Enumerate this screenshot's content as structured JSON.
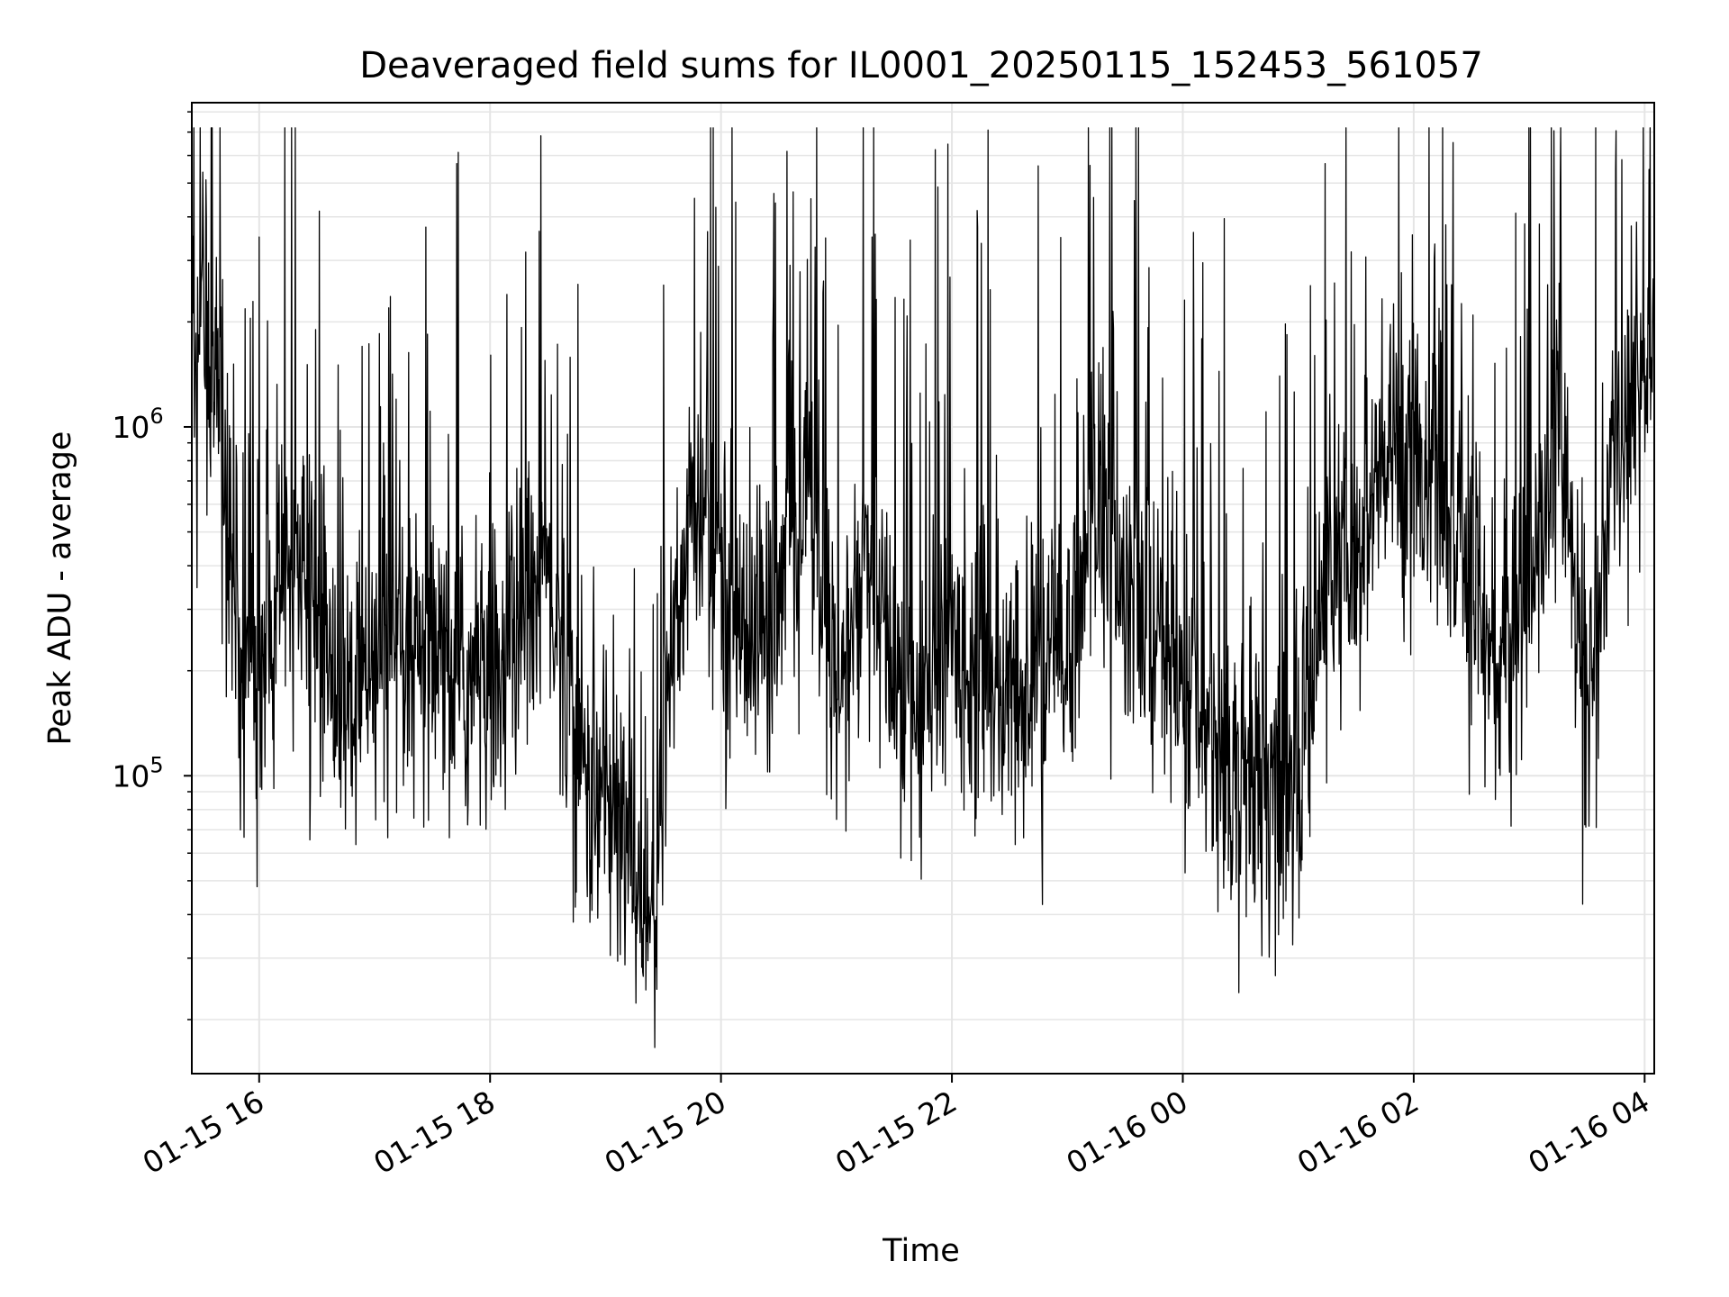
{
  "chart_data": {
    "type": "line",
    "title": "Deaveraged field sums for IL0001_20250115_152453_561057",
    "xlabel": "Time",
    "ylabel": "Peak ADU - average",
    "yscale": "log",
    "grid": true,
    "grid_minor": true,
    "line_color": "#000000",
    "grid_color": "#e5e5e5",
    "xlim": [
      "2025-01-15 15:25",
      "2025-01-16 04:05"
    ],
    "ylim": [
      14000,
      8500000
    ],
    "xticks": [
      {
        "t": "2025-01-15 16:00",
        "label": "01-15 16"
      },
      {
        "t": "2025-01-15 18:00",
        "label": "01-15 18"
      },
      {
        "t": "2025-01-15 20:00",
        "label": "01-15 20"
      },
      {
        "t": "2025-01-15 22:00",
        "label": "01-15 22"
      },
      {
        "t": "2025-01-16 00:00",
        "label": "01-16 00"
      },
      {
        "t": "2025-01-16 02:00",
        "label": "01-16 02"
      },
      {
        "t": "2025-01-16 04:00",
        "label": "01-16 04"
      }
    ],
    "yticks": [
      {
        "value": 100000,
        "base": "10",
        "exp": "5"
      },
      {
        "value": 1000000,
        "base": "10",
        "exp": "6"
      }
    ],
    "x_sampled": [
      "2025-01-15 15:25",
      "2025-01-15 15:30",
      "2025-01-15 15:40",
      "2025-01-15 15:50",
      "2025-01-15 16:00",
      "2025-01-15 16:15",
      "2025-01-15 16:30",
      "2025-01-15 16:45",
      "2025-01-15 17:00",
      "2025-01-15 17:30",
      "2025-01-15 18:00",
      "2025-01-15 18:30",
      "2025-01-15 18:45",
      "2025-01-15 19:00",
      "2025-01-15 19:15",
      "2025-01-15 19:25",
      "2025-01-15 19:35",
      "2025-01-15 19:45",
      "2025-01-15 20:00",
      "2025-01-15 20:15",
      "2025-01-15 20:30",
      "2025-01-15 20:45",
      "2025-01-15 21:00",
      "2025-01-15 21:15",
      "2025-01-15 21:30",
      "2025-01-15 21:45",
      "2025-01-15 22:00",
      "2025-01-15 22:15",
      "2025-01-15 22:30",
      "2025-01-15 22:45",
      "2025-01-15 23:00",
      "2025-01-15 23:15",
      "2025-01-15 23:30",
      "2025-01-15 23:45",
      "2025-01-16 00:00",
      "2025-01-16 00:15",
      "2025-01-16 00:30",
      "2025-01-16 00:45",
      "2025-01-16 01:00",
      "2025-01-16 01:15",
      "2025-01-16 01:30",
      "2025-01-16 01:45",
      "2025-01-16 02:00",
      "2025-01-16 02:15",
      "2025-01-16 02:30",
      "2025-01-16 02:45",
      "2025-01-16 03:00",
      "2025-01-16 03:15",
      "2025-01-16 03:30",
      "2025-01-16 03:45",
      "2025-01-16 04:00",
      "2025-01-16 04:05"
    ],
    "y_sampled": [
      1500000,
      2500000,
      900000,
      250000,
      180000,
      400000,
      300000,
      150000,
      180000,
      200000,
      180000,
      400000,
      120000,
      80000,
      60000,
      35000,
      250000,
      600000,
      400000,
      250000,
      300000,
      700000,
      150000,
      400000,
      200000,
      150000,
      250000,
      200000,
      150000,
      200000,
      220000,
      700000,
      300000,
      250000,
      180000,
      130000,
      100000,
      100000,
      90000,
      400000,
      350000,
      800000,
      900000,
      600000,
      350000,
      200000,
      350000,
      1000000,
      150000,
      800000,
      1500000,
      1800000
    ]
  }
}
